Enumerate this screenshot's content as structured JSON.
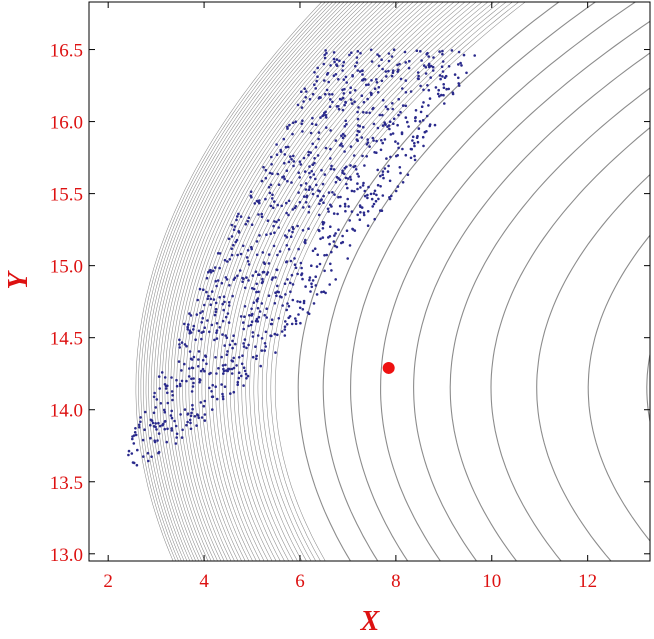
{
  "chart_data": {
    "type": "scatter",
    "title": "",
    "xlabel": "X",
    "ylabel": "Y",
    "xlim": [
      1.6,
      13.3
    ],
    "ylim": [
      12.95,
      16.83
    ],
    "x_ticks": [
      "2",
      "4",
      "6",
      "8",
      "10",
      "12"
    ],
    "y_ticks": [
      "13.0",
      "13.5",
      "14.0",
      "14.5",
      "15.0",
      "15.5",
      "16.0",
      "16.5"
    ],
    "grid": false,
    "legend": "none",
    "highlight_point": {
      "x": 7.85,
      "y": 14.29
    },
    "scatter_cloud": {
      "approx_count": 1100,
      "x_range": [
        2.4,
        10.0
      ],
      "y_range": [
        13.5,
        16.5
      ]
    },
    "colors": {
      "label": "#dd1111",
      "contour": "#8c8c8c",
      "points": "#2a2a8c",
      "highlight": "#ee1111",
      "frame": "#000000"
    }
  }
}
